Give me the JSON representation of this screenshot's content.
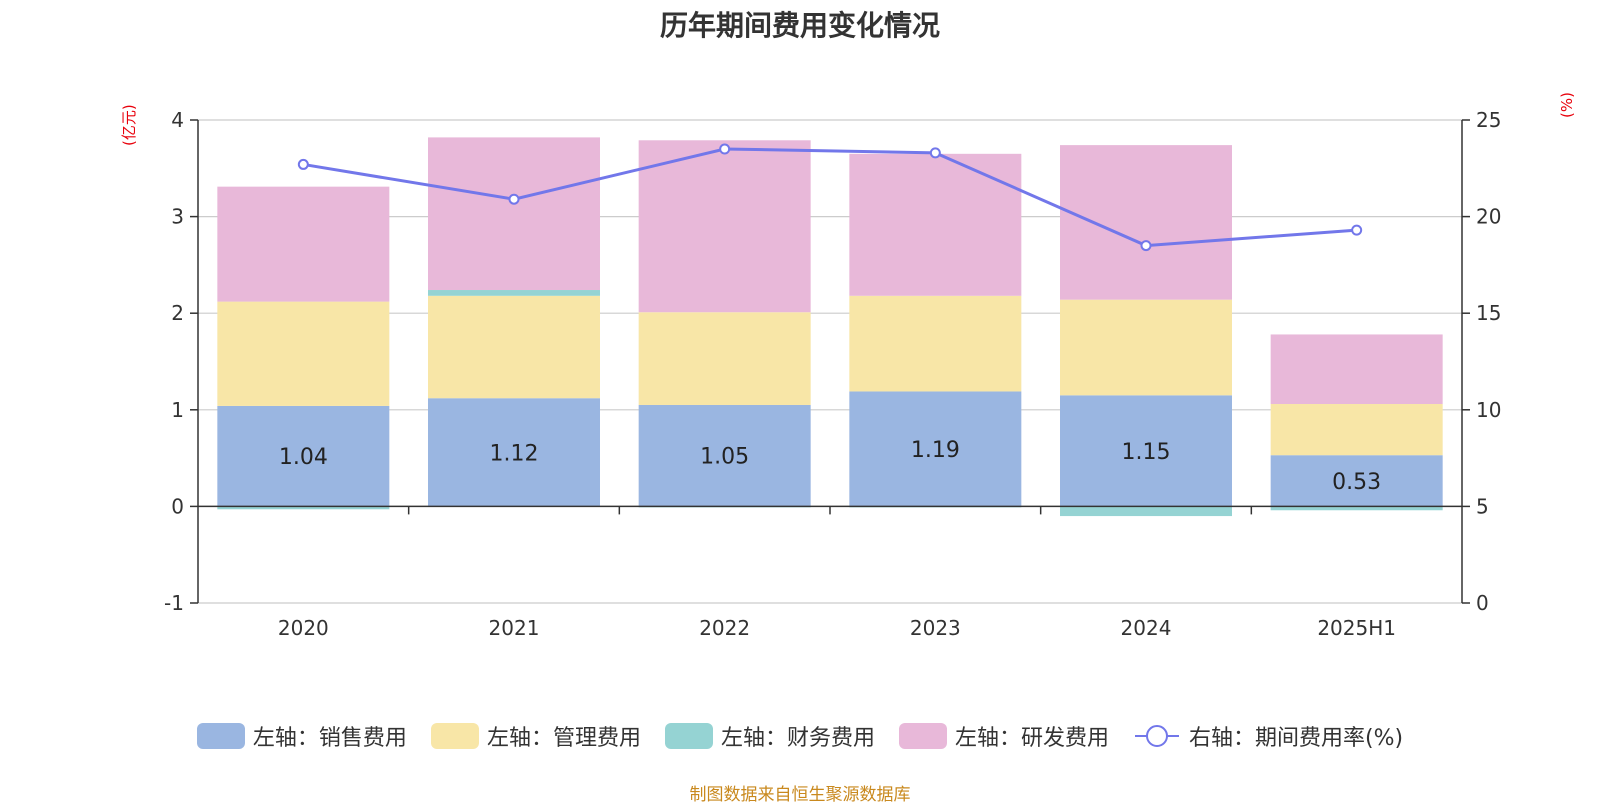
{
  "chart_data": {
    "type": "bar",
    "title": "历年期间费用变化情况",
    "categories": [
      "2020",
      "2021",
      "2022",
      "2023",
      "2024",
      "2025H1"
    ],
    "left_axis": {
      "unit": "(亿元)",
      "ylim": [
        -1,
        4
      ],
      "ticks": [
        "4",
        "3",
        "2",
        "1",
        "0",
        "-1"
      ]
    },
    "right_axis": {
      "unit": "(%)",
      "ylim": [
        0,
        25
      ],
      "ticks": [
        "25",
        "20",
        "15",
        "10",
        "5",
        "0"
      ]
    },
    "series": [
      {
        "name": "左轴：销售费用",
        "type": "bar",
        "stack": "left",
        "color": "#9ab6e1",
        "values": [
          1.04,
          1.12,
          1.05,
          1.19,
          1.15,
          0.53
        ],
        "labels": [
          "1.04",
          "1.12",
          "1.05",
          "1.19",
          "1.15",
          "0.53"
        ]
      },
      {
        "name": "左轴：管理费用",
        "type": "bar",
        "stack": "left",
        "color": "#f8e6a7",
        "values": [
          1.08,
          1.06,
          0.96,
          0.99,
          0.99,
          0.53
        ]
      },
      {
        "name": "左轴：财务费用",
        "type": "bar",
        "stack": "left",
        "color": "#95d3d3",
        "values": [
          -0.03,
          0.06,
          -0.01,
          -0.01,
          -0.1,
          -0.04
        ]
      },
      {
        "name": "左轴：研发费用",
        "type": "bar",
        "stack": "left",
        "color": "#e8b8d9",
        "values": [
          1.19,
          1.58,
          1.78,
          1.47,
          1.6,
          0.72
        ]
      },
      {
        "name": "右轴：期间费用率(%)",
        "type": "line",
        "axis": "right",
        "color": "#7277ea",
        "values": [
          22.7,
          20.9,
          23.5,
          23.3,
          18.5,
          19.3
        ]
      }
    ],
    "grid": true,
    "legend_position": "bottom"
  },
  "source_note": "制图数据来自恒生聚源数据库"
}
